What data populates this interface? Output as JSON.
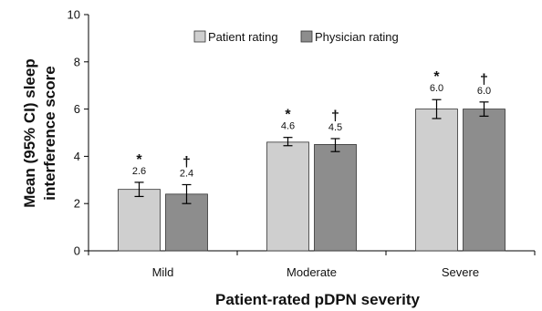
{
  "chart_data": {
    "type": "bar",
    "xlabel": "Patient-rated pDPN severity",
    "ylabel_lines": [
      "Mean (95% CI) sleep",
      "interference score"
    ],
    "ylim": [
      0,
      10
    ],
    "yticks": [
      "0",
      "2",
      "4",
      "6",
      "8",
      "10"
    ],
    "ytick_values": [
      0,
      2,
      4,
      6,
      8,
      10
    ],
    "categories": [
      "Mild",
      "Moderate",
      "Severe"
    ],
    "legend_position": "top-center",
    "series": [
      {
        "name": "Patient rating",
        "color": "#cfcfcf",
        "values": [
          2.6,
          4.6,
          6.0
        ],
        "ci_low": [
          2.3,
          4.45,
          5.6
        ],
        "ci_high": [
          2.9,
          4.8,
          6.4
        ],
        "labels": [
          "2.6",
          "4.6",
          "6.0"
        ],
        "marker": "*"
      },
      {
        "name": "Physician rating",
        "color": "#8d8d8d",
        "values": [
          2.4,
          4.5,
          6.0
        ],
        "ci_low": [
          2.0,
          4.2,
          5.7
        ],
        "ci_high": [
          2.8,
          4.75,
          6.3
        ],
        "labels": [
          "2.4",
          "4.5",
          "6.0"
        ],
        "marker": "†"
      }
    ]
  }
}
